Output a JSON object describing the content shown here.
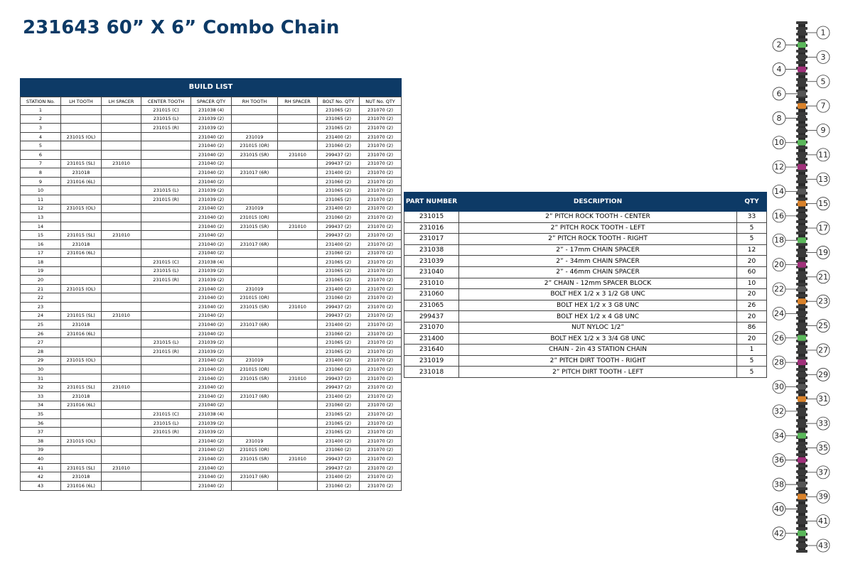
{
  "header": {
    "title": "231643 60” X 6” Combo Chain"
  },
  "build_list": {
    "title": "BUILD LIST",
    "columns": [
      "STATION No.",
      "LH TOOTH",
      "LH SPACER",
      "CENTER TOOTH",
      "SPACER  QTY",
      "RH TOOTH",
      "RH SPACER",
      "BOLT No.  QTY",
      "NUT No.  QTY"
    ],
    "rows": [
      [
        "1",
        null,
        null,
        "231015 (C)",
        "231038  (4)",
        null,
        null,
        "231065  (2)",
        "231070  (2)"
      ],
      [
        "2",
        null,
        null,
        "231015 (L)",
        "231039  (2)",
        null,
        null,
        "231065  (2)",
        "231070  (2)"
      ],
      [
        "3",
        null,
        null,
        "231015 (R)",
        "231039  (2)",
        null,
        null,
        "231065  (2)",
        "231070  (2)"
      ],
      [
        "4",
        "231015 (OL)",
        null,
        null,
        "231040  (2)",
        "231019",
        null,
        "231400  (2)",
        "231070  (2)"
      ],
      [
        "5",
        null,
        null,
        null,
        "231040  (2)",
        "231015 (OR)",
        null,
        "231060  (2)",
        "231070  (2)"
      ],
      [
        "6",
        null,
        null,
        null,
        "231040  (2)",
        "231015 (SR)",
        "231010",
        "299437  (2)",
        "231070  (2)"
      ],
      [
        "7",
        "231015 (SL)",
        "231010",
        null,
        "231040  (2)",
        null,
        null,
        "299437  (2)",
        "231070  (2)"
      ],
      [
        "8",
        "231018",
        null,
        null,
        "231040  (2)",
        "231017 (6R)",
        null,
        "231400  (2)",
        "231070  (2)"
      ],
      [
        "9",
        "231016 (6L)",
        null,
        null,
        "231040  (2)",
        null,
        null,
        "231060  (2)",
        "231070  (2)"
      ],
      [
        "10",
        null,
        null,
        "231015 (L)",
        "231039  (2)",
        null,
        null,
        "231065  (2)",
        "231070  (2)"
      ],
      [
        "11",
        null,
        null,
        "231015 (R)",
        "231039  (2)",
        null,
        null,
        "231065  (2)",
        "231070  (2)"
      ],
      [
        "12",
        "231015 (OL)",
        null,
        null,
        "231040  (2)",
        "231019",
        null,
        "231400  (2)",
        "231070  (2)"
      ],
      [
        "13",
        null,
        null,
        null,
        "231040  (2)",
        "231015 (OR)",
        null,
        "231060  (2)",
        "231070  (2)"
      ],
      [
        "14",
        null,
        null,
        null,
        "231040  (2)",
        "231015 (SR)",
        "231010",
        "299437  (2)",
        "231070  (2)"
      ],
      [
        "15",
        "231015 (SL)",
        "231010",
        null,
        "231040  (2)",
        null,
        null,
        "299437  (2)",
        "231070  (2)"
      ],
      [
        "16",
        "231018",
        null,
        null,
        "231040  (2)",
        "231017 (6R)",
        null,
        "231400  (2)",
        "231070  (2)"
      ],
      [
        "17",
        "231016 (6L)",
        null,
        null,
        "231040  (2)",
        null,
        null,
        "231060  (2)",
        "231070  (2)"
      ],
      [
        "18",
        null,
        null,
        "231015 (C)",
        "231038  (4)",
        null,
        null,
        "231065  (2)",
        "231070  (2)"
      ],
      [
        "19",
        null,
        null,
        "231015 (L)",
        "231039  (2)",
        null,
        null,
        "231065  (2)",
        "231070  (2)"
      ],
      [
        "20",
        null,
        null,
        "231015 (R)",
        "231039  (2)",
        null,
        null,
        "231065  (2)",
        "231070  (2)"
      ],
      [
        "21",
        "231015 (OL)",
        null,
        null,
        "231040  (2)",
        "231019",
        null,
        "231400  (2)",
        "231070  (2)"
      ],
      [
        "22",
        null,
        null,
        null,
        "231040  (2)",
        "231015 (OR)",
        null,
        "231060  (2)",
        "231070  (2)"
      ],
      [
        "23",
        null,
        null,
        null,
        "231040  (2)",
        "231015 (SR)",
        "231010",
        "299437  (2)",
        "231070  (2)"
      ],
      [
        "24",
        "231015 (SL)",
        "231010",
        null,
        "231040  (2)",
        null,
        null,
        "299437  (2)",
        "231070  (2)"
      ],
      [
        "25",
        "231018",
        null,
        null,
        "231040  (2)",
        "231017 (6R)",
        null,
        "231400  (2)",
        "231070  (2)"
      ],
      [
        "26",
        "231016 (6L)",
        null,
        null,
        "231040  (2)",
        null,
        null,
        "231060  (2)",
        "231070  (2)"
      ],
      [
        "27",
        null,
        null,
        "231015 (L)",
        "231039  (2)",
        null,
        null,
        "231065  (2)",
        "231070  (2)"
      ],
      [
        "28",
        null,
        null,
        "231015 (R)",
        "231039  (2)",
        null,
        null,
        "231065  (2)",
        "231070  (2)"
      ],
      [
        "29",
        "231015 (OL)",
        null,
        null,
        "231040  (2)",
        "231019",
        null,
        "231400  (2)",
        "231070  (2)"
      ],
      [
        "30",
        null,
        null,
        null,
        "231040  (2)",
        "231015 (OR)",
        null,
        "231060  (2)",
        "231070  (2)"
      ],
      [
        "31",
        null,
        null,
        null,
        "231040  (2)",
        "231015 (SR)",
        "231010",
        "299437  (2)",
        "231070  (2)"
      ],
      [
        "32",
        "231015 (SL)",
        "231010",
        null,
        "231040  (2)",
        null,
        null,
        "299437  (2)",
        "231070  (2)"
      ],
      [
        "33",
        "231018",
        null,
        null,
        "231040  (2)",
        "231017 (6R)",
        null,
        "231400  (2)",
        "231070  (2)"
      ],
      [
        "34",
        "231016 (6L)",
        null,
        null,
        "231040  (2)",
        null,
        null,
        "231060  (2)",
        "231070  (2)"
      ],
      [
        "35",
        null,
        null,
        "231015 (C)",
        "231038  (4)",
        null,
        null,
        "231065  (2)",
        "231070  (2)"
      ],
      [
        "36",
        null,
        null,
        "231015 (L)",
        "231039  (2)",
        null,
        null,
        "231065  (2)",
        "231070  (2)"
      ],
      [
        "37",
        null,
        null,
        "231015 (R)",
        "231039  (2)",
        null,
        null,
        "231065  (2)",
        "231070  (2)"
      ],
      [
        "38",
        "231015 (OL)",
        null,
        null,
        "231040  (2)",
        "231019",
        null,
        "231400  (2)",
        "231070  (2)"
      ],
      [
        "39",
        null,
        null,
        null,
        "231040  (2)",
        "231015 (OR)",
        null,
        "231060  (2)",
        "231070  (2)"
      ],
      [
        "40",
        null,
        null,
        null,
        "231040  (2)",
        "231015 (SR)",
        "231010",
        "299437  (2)",
        "231070  (2)"
      ],
      [
        "41",
        "231015 (SL)",
        "231010",
        null,
        "231040  (2)",
        null,
        null,
        "299437  (2)",
        "231070  (2)"
      ],
      [
        "42",
        "231018",
        null,
        null,
        "231040  (2)",
        "231017 (6R)",
        null,
        "231400  (2)",
        "231070  (2)"
      ],
      [
        "43",
        "231016 (6L)",
        null,
        null,
        "231040  (2)",
        null,
        null,
        "231060  (2)",
        "231070  (2)"
      ]
    ]
  },
  "parts": {
    "columns": [
      "PART NUMBER",
      "DESCRIPTION",
      "QTY"
    ],
    "rows": [
      [
        "231015",
        "2” PITCH ROCK TOOTH - CENTER",
        "33"
      ],
      [
        "231016",
        "2” PITCH ROCK TOOTH - LEFT",
        "5"
      ],
      [
        "231017",
        "2” PITCH ROCK TOOTH - RIGHT",
        "5"
      ],
      [
        "231038",
        "2” - 17mm CHAIN SPACER",
        "12"
      ],
      [
        "231039",
        "2” - 34mm CHAIN SPACER",
        "20"
      ],
      [
        "231040",
        "2” - 46mm CHAIN SPACER",
        "60"
      ],
      [
        "231010",
        "2” CHAIN - 12mm SPACER BLOCK",
        "10"
      ],
      [
        "231060",
        "BOLT HEX 1/2 x 3 1/2 G8 UNC",
        "20"
      ],
      [
        "231065",
        "BOLT HEX 1/2 x 3 G8 UNC",
        "26"
      ],
      [
        "299437",
        "BOLT HEX 1/2 x 4 G8 UNC",
        "20"
      ],
      [
        "231070",
        "NUT NYLOC 1/2”",
        "86"
      ],
      [
        "231400",
        "BOLT HEX 1/2 x 3 3/4 G8 UNC",
        "20"
      ],
      [
        "231640",
        "CHAIN - 2in 43 STATION CHAIN",
        "1"
      ],
      [
        "231019",
        "2” PITCH DIRT TOOTH - RIGHT",
        "5"
      ],
      [
        "231018",
        "2” PITCH DIRT TOOTH - LEFT",
        "5"
      ]
    ]
  },
  "diagram": {
    "labels": [
      "1",
      "2",
      "3",
      "4",
      "5",
      "6",
      "7",
      "8",
      "9",
      "10",
      "11",
      "12",
      "13",
      "14",
      "15",
      "16",
      "17",
      "18",
      "19",
      "20",
      "21",
      "22",
      "23",
      "24",
      "25",
      "26",
      "27",
      "28",
      "29",
      "30",
      "31",
      "32",
      "33",
      "34",
      "35",
      "36",
      "37",
      "38",
      "39",
      "40",
      "41",
      "42",
      "43"
    ]
  }
}
